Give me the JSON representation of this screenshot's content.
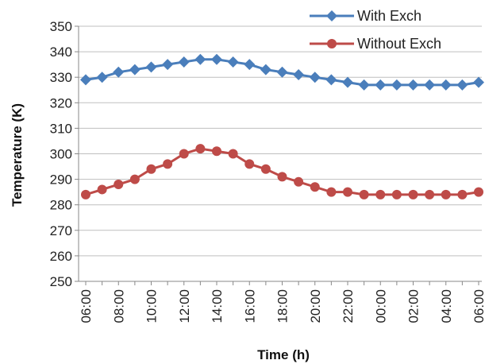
{
  "chart_data": {
    "type": "line",
    "title": "",
    "xlabel": "Time (h)",
    "ylabel": "Temperature (K)",
    "ylim": [
      250,
      350
    ],
    "yticks": [
      250,
      260,
      270,
      280,
      290,
      300,
      310,
      320,
      330,
      340,
      350
    ],
    "grid": "horizontal",
    "legend_position": "top-right",
    "x": [
      "06:00",
      "07:00",
      "08:00",
      "09:00",
      "10:00",
      "11:00",
      "12:00",
      "13:00",
      "14:00",
      "15:00",
      "16:00",
      "17:00",
      "18:00",
      "19:00",
      "20:00",
      "21:00",
      "22:00",
      "23:00",
      "00:00",
      "01:00",
      "02:00",
      "03:00",
      "04:00",
      "05:00",
      "06:00"
    ],
    "x_tick_labels": [
      "06:00",
      "08:00",
      "10:00",
      "12:00",
      "14:00",
      "16:00",
      "18:00",
      "20:00",
      "22:00",
      "00:00",
      "02:00",
      "04:00",
      "06:00"
    ],
    "series": [
      {
        "name": "With Exch",
        "color": "#4a7ebb",
        "marker": "diamond",
        "values": [
          329,
          330,
          332,
          333,
          334,
          335,
          336,
          337,
          337,
          336,
          335,
          333,
          332,
          331,
          330,
          329,
          328,
          327,
          327,
          327,
          327,
          327,
          327,
          327,
          328
        ]
      },
      {
        "name": "Without Exch",
        "color": "#be4b48",
        "marker": "circle",
        "values": [
          284,
          286,
          288,
          290,
          294,
          296,
          300,
          302,
          301,
          300,
          296,
          294,
          291,
          289,
          287,
          285,
          285,
          284,
          284,
          284,
          284,
          284,
          284,
          284,
          285
        ]
      }
    ]
  }
}
